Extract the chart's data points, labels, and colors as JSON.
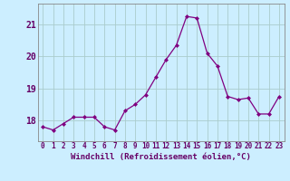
{
  "x": [
    0,
    1,
    2,
    3,
    4,
    5,
    6,
    7,
    8,
    9,
    10,
    11,
    12,
    13,
    14,
    15,
    16,
    17,
    18,
    19,
    20,
    21,
    22,
    23
  ],
  "y": [
    17.8,
    17.7,
    17.9,
    18.1,
    18.1,
    18.1,
    17.8,
    17.7,
    18.3,
    18.5,
    18.8,
    19.35,
    19.9,
    20.35,
    21.25,
    21.2,
    20.1,
    19.7,
    18.75,
    18.65,
    18.7,
    18.2,
    18.2,
    18.75
  ],
  "line_color": "#800080",
  "marker": "D",
  "marker_size": 2.0,
  "line_width": 0.9,
  "bg_color": "#cceeff",
  "grid_color": "#aacccc",
  "xlabel": "Windchill (Refroidissement éolien,°C)",
  "xlabel_color": "#660066",
  "tick_color": "#660066",
  "ylim": [
    17.35,
    21.65
  ],
  "yticks": [
    18,
    19,
    20,
    21
  ],
  "xticks": [
    0,
    1,
    2,
    3,
    4,
    5,
    6,
    7,
    8,
    9,
    10,
    11,
    12,
    13,
    14,
    15,
    16,
    17,
    18,
    19,
    20,
    21,
    22,
    23
  ],
  "xtick_labels": [
    "0",
    "1",
    "2",
    "3",
    "4",
    "5",
    "6",
    "7",
    "8",
    "9",
    "10",
    "11",
    "12",
    "13",
    "14",
    "15",
    "16",
    "17",
    "18",
    "19",
    "20",
    "21",
    "22",
    "23"
  ],
  "ytick_fontsize": 7,
  "xtick_fontsize": 5.5,
  "xlabel_fontsize": 6.5
}
